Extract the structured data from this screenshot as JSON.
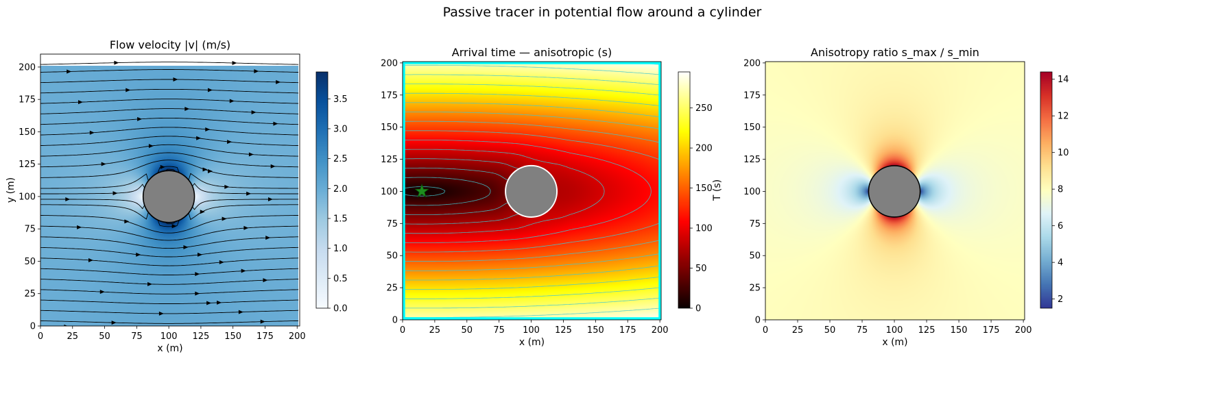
{
  "figure": {
    "suptitle": "Passive tracer in potential flow around a cylinder"
  },
  "colors": {
    "cylinder_fill": "#808080",
    "streamline": "#000000",
    "contour_line": "#40c8d0",
    "domain_border": "#00ffff",
    "source_marker": "#1e8c1e",
    "velocity_base": "#5aa0d2"
  },
  "chart_data": [
    {
      "type": "heatmap",
      "title": "Flow velocity |v| (m/s)",
      "xlabel": "x (m)",
      "ylabel": "y (m)",
      "xlim": [
        0,
        202
      ],
      "ylim": [
        0,
        210
      ],
      "field_extent": [
        0,
        201,
        0,
        201
      ],
      "xticks": [
        0,
        25,
        50,
        75,
        100,
        125,
        150,
        175,
        200
      ],
      "yticks": [
        0,
        25,
        50,
        75,
        100,
        125,
        150,
        175,
        200
      ],
      "colormap": "Blues",
      "colorbar": {
        "label": "",
        "range": [
          0,
          3.95
        ],
        "ticks": [
          0.0,
          0.5,
          1.0,
          1.5,
          2.0,
          2.5,
          3.0,
          3.5
        ],
        "tick_labels": [
          "0.0",
          "0.5",
          "1.0",
          "1.5",
          "2.0",
          "2.5",
          "3.0",
          "3.5"
        ]
      },
      "free_stream_speed": 2.0,
      "obstacle": {
        "shape": "circle",
        "center": [
          100,
          100
        ],
        "radius": 20
      },
      "overlay": "streamlines",
      "streamline_y0": [
        2,
        6,
        14,
        22,
        30,
        38,
        46,
        54,
        62,
        70,
        78,
        86,
        94,
        98,
        102,
        106,
        114,
        122,
        130,
        138,
        146,
        154,
        162,
        170,
        178,
        186,
        194,
        200
      ]
    },
    {
      "type": "heatmap",
      "title": "Arrival time — anisotropic (s)",
      "xlabel": "x (m)",
      "ylabel": "",
      "xlim": [
        0,
        201
      ],
      "ylim": [
        0,
        201
      ],
      "xticks": [
        0,
        25,
        50,
        75,
        100,
        125,
        150,
        175,
        200
      ],
      "yticks": [
        0,
        25,
        50,
        75,
        100,
        125,
        150,
        175,
        200
      ],
      "colormap": "hot",
      "colorbar": {
        "label": "T (s)",
        "range": [
          0,
          295
        ],
        "ticks": [
          0,
          50,
          100,
          150,
          200,
          250
        ],
        "tick_labels": [
          "0",
          "50",
          "100",
          "150",
          "200",
          "250"
        ]
      },
      "source": {
        "x": 15,
        "y": 100,
        "marker": "star"
      },
      "obstacle": {
        "shape": "circle",
        "center": [
          100,
          100
        ],
        "radius": 20
      },
      "overlay": "contours",
      "contour_levels": [
        10,
        30,
        50,
        70,
        90,
        110,
        130,
        150,
        170,
        190,
        210,
        230,
        250,
        270,
        290
      ]
    },
    {
      "type": "heatmap",
      "title": "Anisotropy ratio  s_max / s_min",
      "xlabel": "x (m)",
      "ylabel": "",
      "xlim": [
        0,
        201
      ],
      "ylim": [
        0,
        201
      ],
      "xticks": [
        0,
        25,
        50,
        75,
        100,
        125,
        150,
        175,
        200
      ],
      "yticks": [
        0,
        25,
        50,
        75,
        100,
        125,
        150,
        175,
        200
      ],
      "colormap": "RdYlBu_r",
      "colorbar": {
        "label": "",
        "range": [
          1.5,
          14.4
        ],
        "ticks": [
          2,
          4,
          6,
          8,
          10,
          12,
          14
        ],
        "tick_labels": [
          "2",
          "4",
          "6",
          "8",
          "10",
          "12",
          "14"
        ]
      },
      "background_value": 8,
      "obstacle": {
        "shape": "circle",
        "center": [
          100,
          100
        ],
        "radius": 20
      }
    }
  ]
}
